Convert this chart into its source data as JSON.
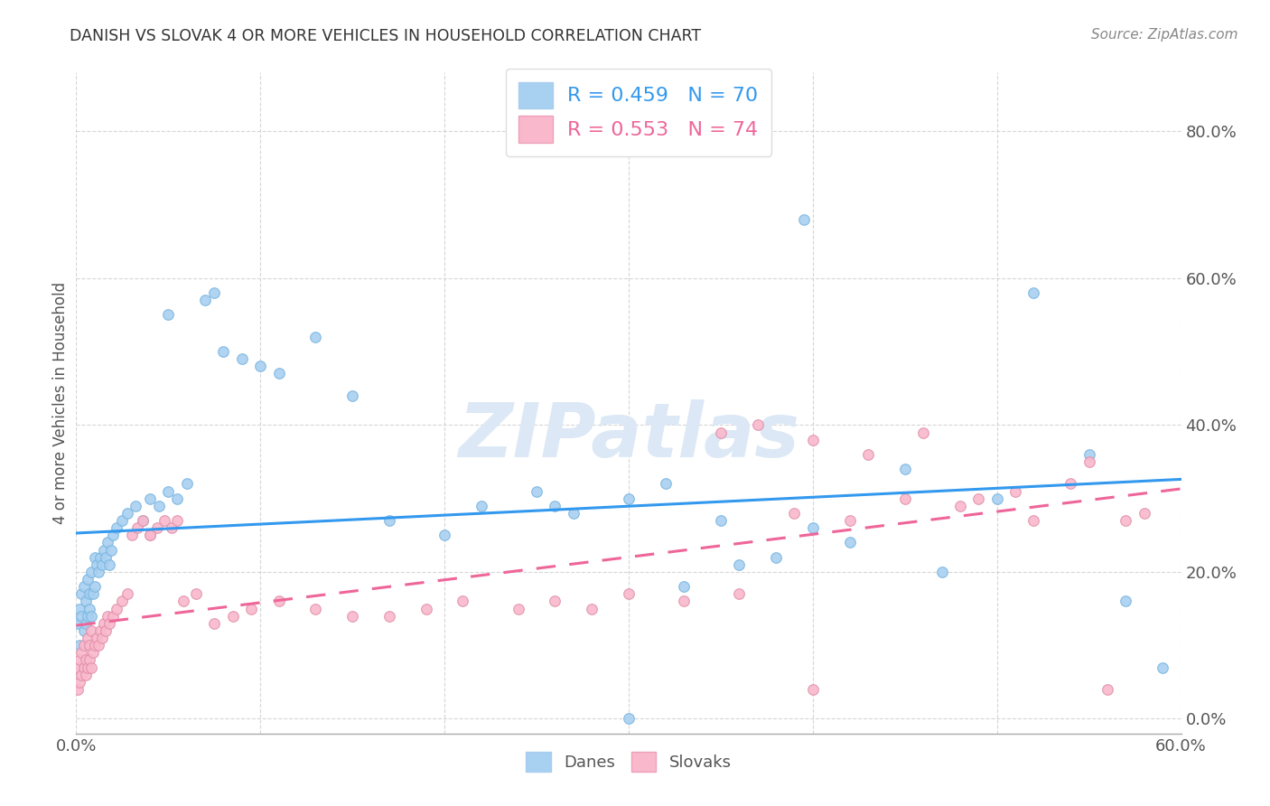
{
  "title": "DANISH VS SLOVAK 4 OR MORE VEHICLES IN HOUSEHOLD CORRELATION CHART",
  "source": "Source: ZipAtlas.com",
  "ylabel": "4 or more Vehicles in Household",
  "ytick_values": [
    0.0,
    0.2,
    0.4,
    0.6,
    0.8
  ],
  "xlim": [
    0.0,
    0.6
  ],
  "ylim": [
    -0.02,
    0.88
  ],
  "danes_R": 0.459,
  "danes_N": 70,
  "slovaks_R": 0.553,
  "slovaks_N": 74,
  "danes_color": "#a8d0f0",
  "slovaks_color": "#f9b8cc",
  "danes_line_color": "#3399ee",
  "slovaks_line_color": "#ee6699",
  "background_color": "#ffffff",
  "grid_color": "#cccccc",
  "watermark": "ZIPatlas",
  "watermark_color": "#dce8f5",
  "legend_danes_label": "Danes",
  "legend_slovaks_label": "Slovaks",
  "danes_x": [
    0.001,
    0.002,
    0.002,
    0.003,
    0.003,
    0.004,
    0.004,
    0.005,
    0.005,
    0.006,
    0.006,
    0.007,
    0.007,
    0.008,
    0.008,
    0.009,
    0.01,
    0.01,
    0.011,
    0.012,
    0.013,
    0.014,
    0.015,
    0.016,
    0.017,
    0.018,
    0.019,
    0.02,
    0.022,
    0.025,
    0.028,
    0.032,
    0.036,
    0.04,
    0.045,
    0.05,
    0.055,
    0.06,
    0.07,
    0.075,
    0.08,
    0.09,
    0.1,
    0.11,
    0.13,
    0.15,
    0.17,
    0.2,
    0.22,
    0.25,
    0.27,
    0.3,
    0.32,
    0.35,
    0.38,
    0.4,
    0.42,
    0.45,
    0.47,
    0.5,
    0.52,
    0.55,
    0.57,
    0.59,
    0.395,
    0.33,
    0.36,
    0.26,
    0.3,
    0.05
  ],
  "danes_y": [
    0.13,
    0.15,
    0.1,
    0.14,
    0.17,
    0.12,
    0.18,
    0.13,
    0.16,
    0.14,
    0.19,
    0.15,
    0.17,
    0.14,
    0.2,
    0.17,
    0.18,
    0.22,
    0.21,
    0.2,
    0.22,
    0.21,
    0.23,
    0.22,
    0.24,
    0.21,
    0.23,
    0.25,
    0.26,
    0.27,
    0.28,
    0.29,
    0.27,
    0.3,
    0.29,
    0.31,
    0.3,
    0.32,
    0.57,
    0.58,
    0.5,
    0.49,
    0.48,
    0.47,
    0.52,
    0.44,
    0.27,
    0.25,
    0.29,
    0.31,
    0.28,
    0.3,
    0.32,
    0.27,
    0.22,
    0.26,
    0.24,
    0.34,
    0.2,
    0.3,
    0.58,
    0.36,
    0.16,
    0.07,
    0.68,
    0.18,
    0.21,
    0.29,
    0.0,
    0.55
  ],
  "slovaks_x": [
    0.001,
    0.001,
    0.002,
    0.002,
    0.003,
    0.003,
    0.004,
    0.004,
    0.005,
    0.005,
    0.006,
    0.006,
    0.007,
    0.007,
    0.008,
    0.008,
    0.009,
    0.01,
    0.011,
    0.012,
    0.013,
    0.014,
    0.015,
    0.016,
    0.017,
    0.018,
    0.02,
    0.022,
    0.025,
    0.028,
    0.03,
    0.033,
    0.036,
    0.04,
    0.044,
    0.048,
    0.052,
    0.058,
    0.065,
    0.075,
    0.085,
    0.095,
    0.11,
    0.13,
    0.15,
    0.17,
    0.19,
    0.21,
    0.24,
    0.26,
    0.28,
    0.3,
    0.33,
    0.36,
    0.39,
    0.42,
    0.45,
    0.48,
    0.51,
    0.54,
    0.56,
    0.58,
    0.35,
    0.37,
    0.4,
    0.43,
    0.46,
    0.49,
    0.52,
    0.55,
    0.04,
    0.055,
    0.4,
    0.57
  ],
  "slovaks_y": [
    0.04,
    0.07,
    0.05,
    0.08,
    0.06,
    0.09,
    0.07,
    0.1,
    0.06,
    0.08,
    0.07,
    0.11,
    0.08,
    0.1,
    0.07,
    0.12,
    0.09,
    0.1,
    0.11,
    0.1,
    0.12,
    0.11,
    0.13,
    0.12,
    0.14,
    0.13,
    0.14,
    0.15,
    0.16,
    0.17,
    0.25,
    0.26,
    0.27,
    0.25,
    0.26,
    0.27,
    0.26,
    0.16,
    0.17,
    0.13,
    0.14,
    0.15,
    0.16,
    0.15,
    0.14,
    0.14,
    0.15,
    0.16,
    0.15,
    0.16,
    0.15,
    0.17,
    0.16,
    0.17,
    0.28,
    0.27,
    0.3,
    0.29,
    0.31,
    0.32,
    0.04,
    0.28,
    0.39,
    0.4,
    0.38,
    0.36,
    0.39,
    0.3,
    0.27,
    0.35,
    0.25,
    0.27,
    0.04,
    0.27
  ]
}
